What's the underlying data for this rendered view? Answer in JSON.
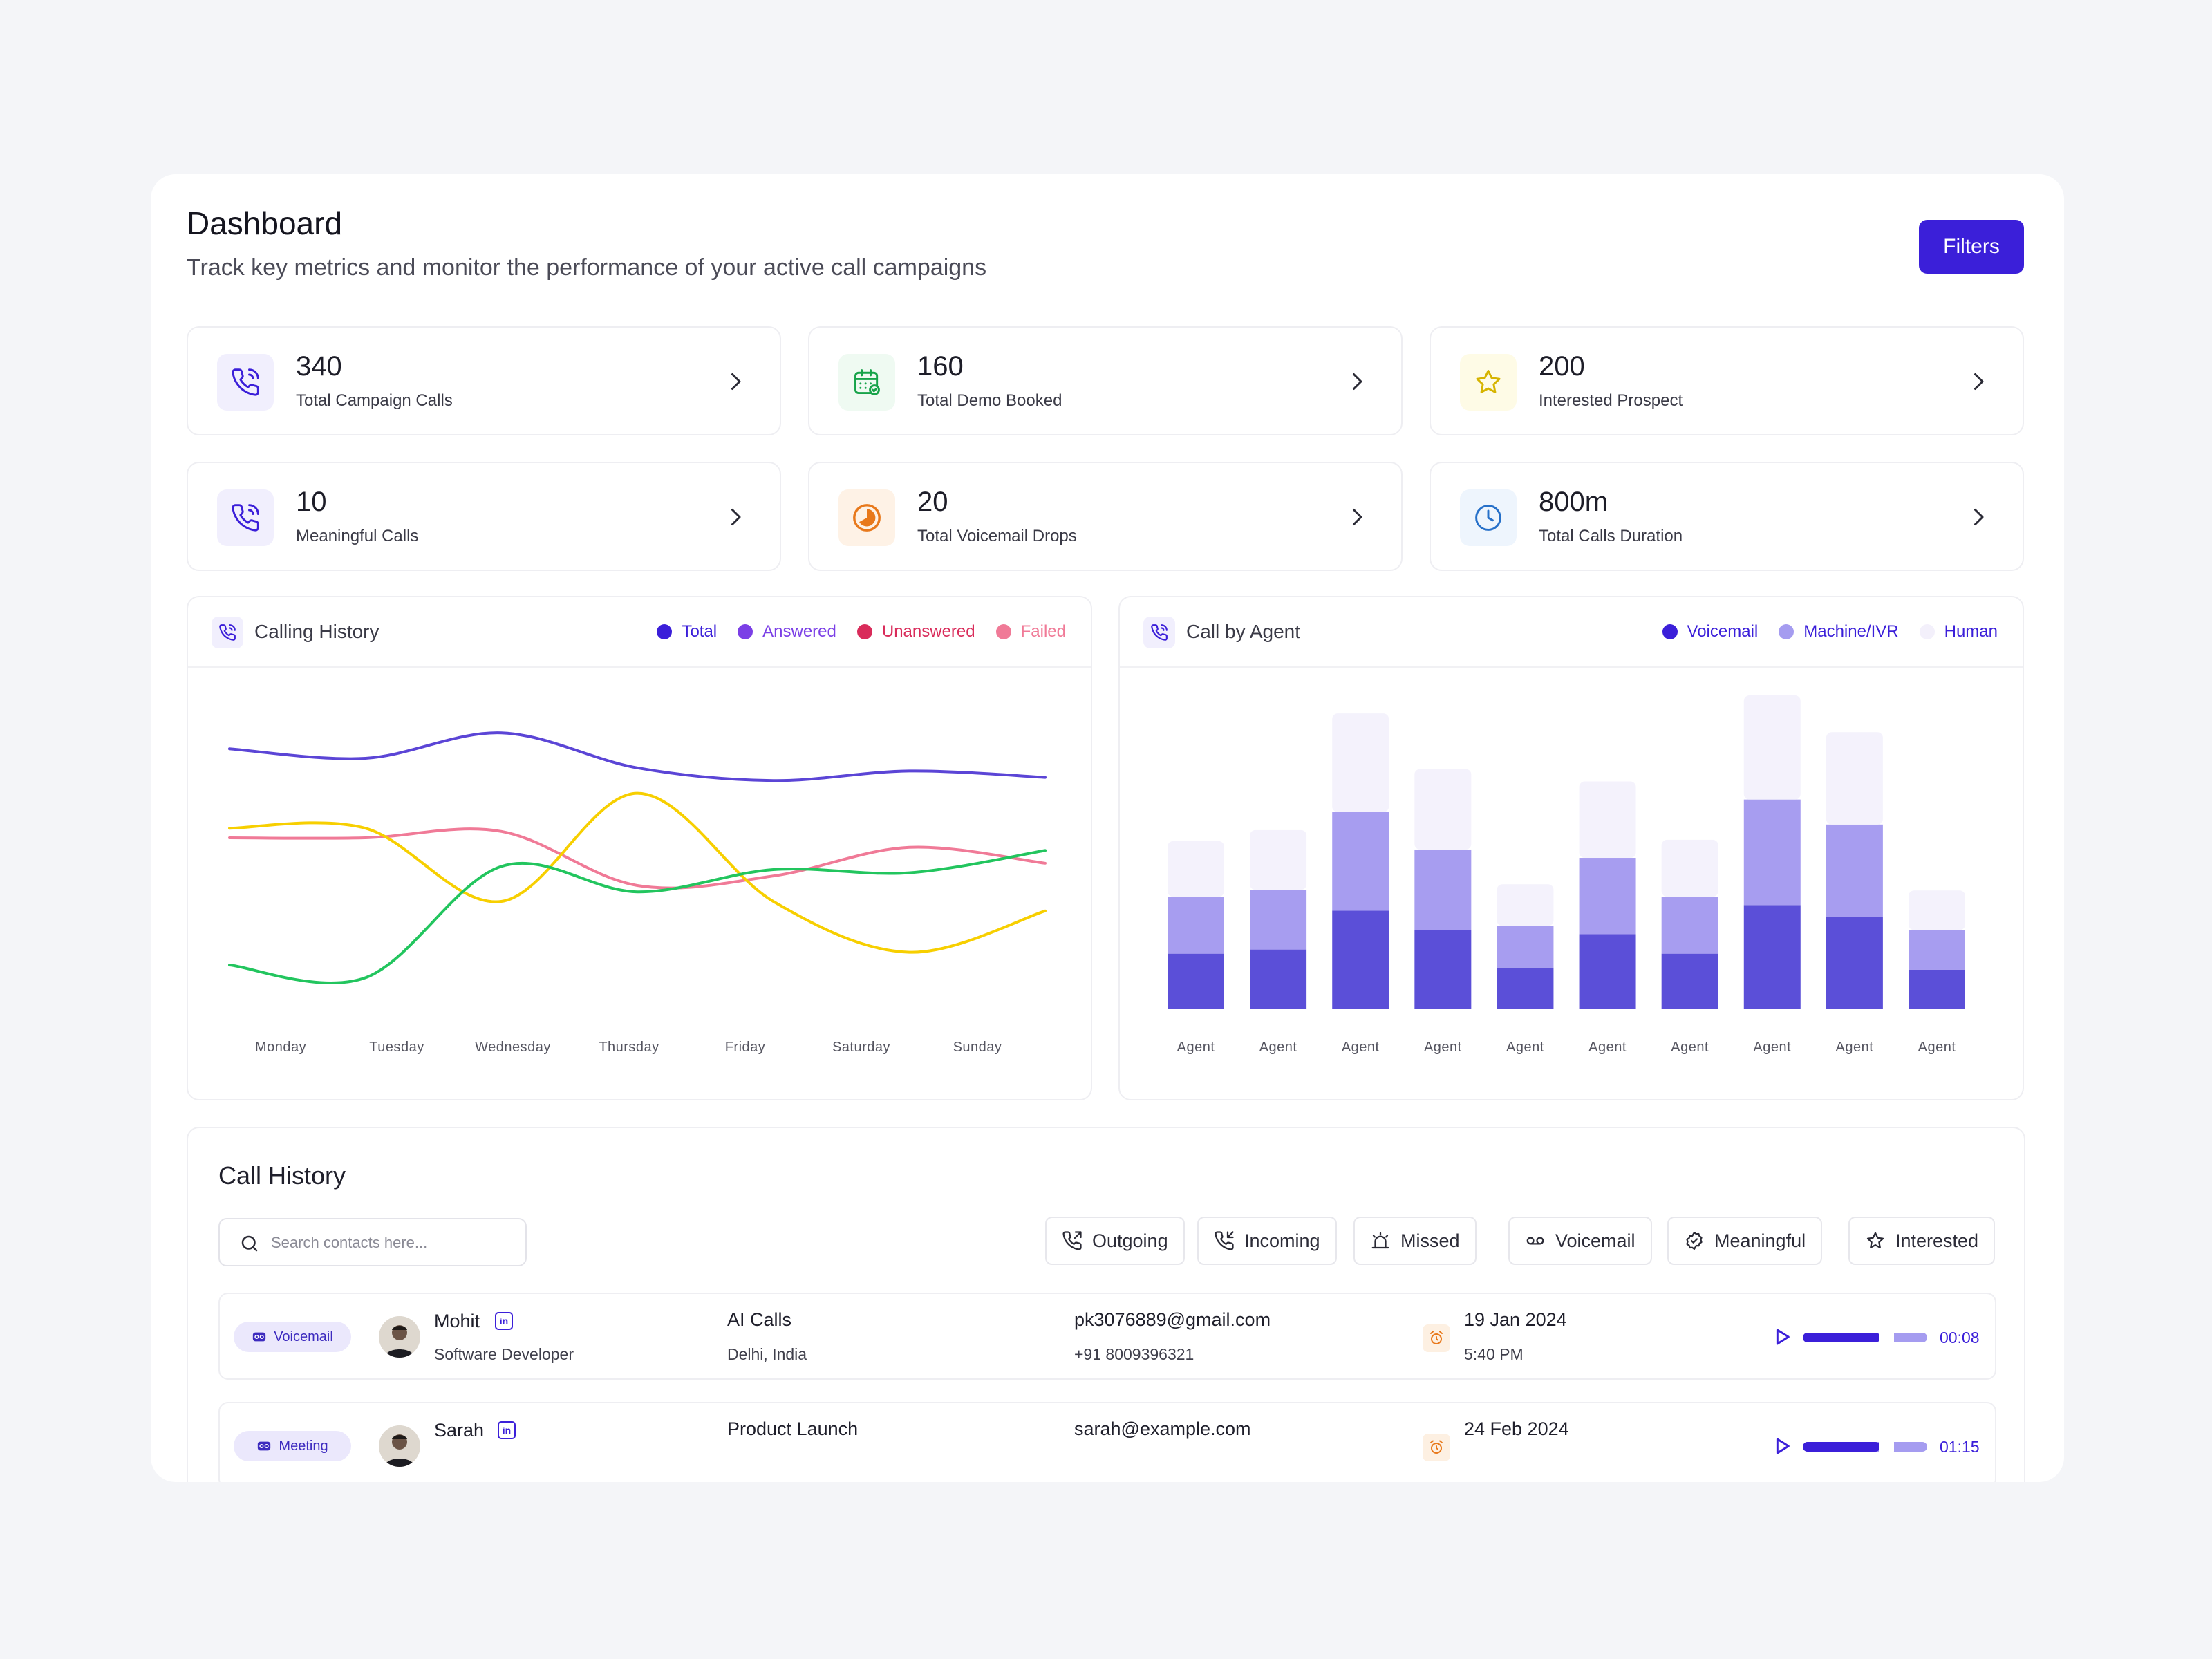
{
  "header": {
    "title": "Dashboard",
    "subtitle": "Track key metrics and monitor the performance of your active call campaigns",
    "filters_label": "Filters"
  },
  "stats": [
    {
      "value": "340",
      "label": "Total Campaign Calls",
      "icon": "phone-ringing-icon",
      "color": "#3b1fd9"
    },
    {
      "value": "160",
      "label": "Total Demo Booked",
      "icon": "calendar-check-icon",
      "color": "#17a34a"
    },
    {
      "value": "200",
      "label": "Interested Prospect",
      "icon": "star-icon",
      "color": "#d6b400"
    },
    {
      "value": "10",
      "label": "Meaningful Calls",
      "icon": "phone-ringing-icon",
      "color": "#3b1fd9"
    },
    {
      "value": "20",
      "label": "Total Voicemail Drops",
      "icon": "pie-icon",
      "color": "#e8791c"
    },
    {
      "value": "800m",
      "label": "Total Calls Duration",
      "icon": "clock-icon",
      "color": "#2670c9"
    }
  ],
  "calling_history": {
    "title": "Calling History",
    "legend": [
      {
        "name": "Total",
        "color": "#3b1fd9"
      },
      {
        "name": "Answered",
        "color": "#7b3fe6"
      },
      {
        "name": "Unanswered",
        "color": "#d92b5a"
      },
      {
        "name": "Failed",
        "color": "#f07a97"
      }
    ],
    "days": [
      "Monday",
      "Tuesday",
      "Wednesday",
      "Thursday",
      "Friday",
      "Saturday",
      "Sunday"
    ]
  },
  "call_by_agent": {
    "title": "Call by Agent",
    "legend": [
      {
        "name": "Voicemail",
        "color": "#3b1fd9"
      },
      {
        "name": "Machine/IVR",
        "color": "#a59cf0"
      },
      {
        "name": "Human",
        "color": "#f3f0fb"
      }
    ],
    "agent_label": "Agent"
  },
  "chart_data": [
    {
      "type": "line",
      "x": [
        "Monday",
        "Tuesday",
        "Wednesday",
        "Thursday",
        "Friday",
        "Saturday",
        "Sunday"
      ],
      "ylim": [
        0,
        100
      ],
      "series": [
        {
          "name": "Total",
          "color": "#5b45d6",
          "values": [
            88,
            85,
            93,
            82,
            78,
            81,
            79
          ]
        },
        {
          "name": "Failed",
          "color": "#f07a97",
          "values": [
            60,
            60,
            62,
            45,
            48,
            57,
            52
          ]
        },
        {
          "name": "Unanswered",
          "color": "#f7cf00",
          "values": [
            63,
            63,
            40,
            74,
            40,
            24,
            37
          ]
        },
        {
          "name": "Answered",
          "color": "#22c55e",
          "values": [
            20,
            16,
            51,
            43,
            50,
            49,
            56
          ]
        }
      ]
    },
    {
      "type": "bar",
      "stacked": true,
      "categories": [
        "Agent",
        "Agent",
        "Agent",
        "Agent",
        "Agent",
        "Agent",
        "Agent",
        "Agent",
        "Agent",
        "Agent"
      ],
      "ylim": [
        0,
        450
      ],
      "series": [
        {
          "name": "Voicemail",
          "color": "#5b4fd8",
          "values": [
            80,
            86,
            142,
            114,
            60,
            108,
            80,
            150,
            133,
            57
          ]
        },
        {
          "name": "Machine/IVR",
          "color": "#a79df0",
          "values": [
            82,
            86,
            142,
            116,
            60,
            110,
            82,
            152,
            133,
            57
          ]
        },
        {
          "name": "Human",
          "color": "#f4f2fc",
          "values": [
            80,
            86,
            142,
            116,
            60,
            110,
            82,
            150,
            133,
            57
          ]
        }
      ]
    }
  ],
  "call_history": {
    "title": "Call History",
    "search_placeholder": "Search contacts here...",
    "filters": [
      {
        "label": "Outgoing",
        "icon": "phone-outgoing-icon"
      },
      {
        "label": "Incoming",
        "icon": "phone-incoming-icon"
      },
      {
        "label": "Missed",
        "icon": "alarm-bell-icon"
      },
      {
        "label": "Voicemail",
        "icon": "voicemail-icon"
      },
      {
        "label": "Meaningful",
        "icon": "badge-check-icon"
      },
      {
        "label": "Interested",
        "icon": "star-icon"
      }
    ],
    "rows": [
      {
        "type": "Voicemail",
        "name": "Mohit",
        "role": "Software Developer",
        "campaign": "AI Calls",
        "location": "Delhi, India",
        "email": "pk3076889@gmail.com",
        "phone": "+91 8009396321",
        "date": "19 Jan 2024",
        "time": "5:40 PM",
        "duration": "00:08",
        "progress": 0.62
      },
      {
        "type": "Meeting",
        "name": "Sarah",
        "role": "",
        "campaign": "Product Launch",
        "location": "",
        "email": "sarah@example.com",
        "phone": "",
        "date": "24 Feb 2024",
        "time": "",
        "duration": "01:15",
        "progress": 0.62
      }
    ]
  }
}
